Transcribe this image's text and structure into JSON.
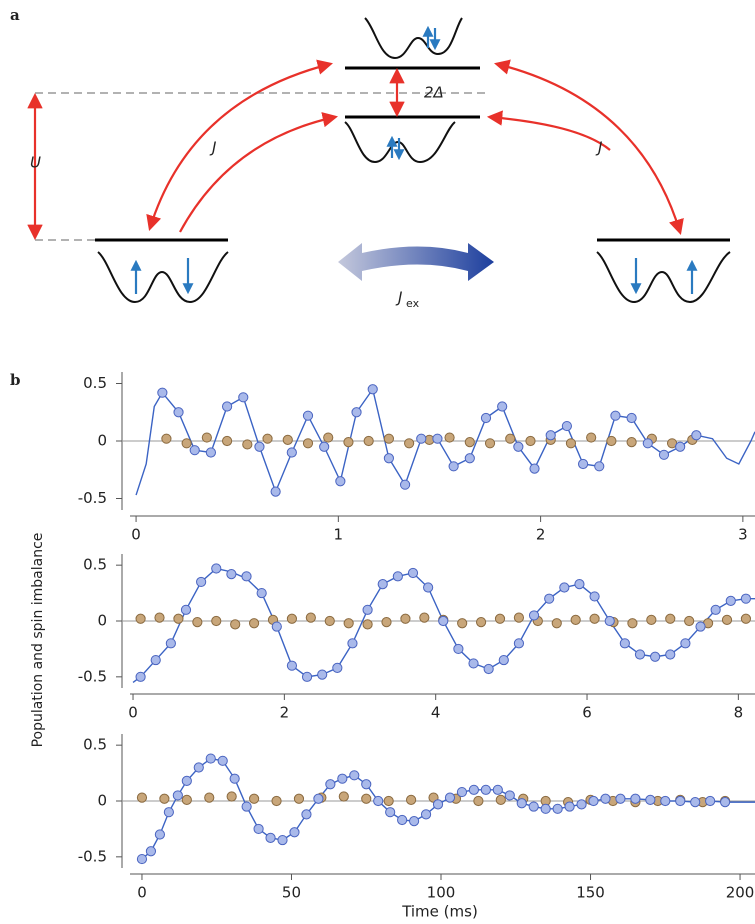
{
  "diagram": {
    "panel_label": "a",
    "U": "U",
    "J_left": "J",
    "J_right": "J",
    "delta": "2Δ",
    "J_ex": {
      "symbol": "J",
      "subscript": "ex"
    }
  },
  "figure_b": {
    "panel_label": "b",
    "ylabel": "Population and spin imbalance"
  },
  "chart_data": [
    {
      "type": "scatter",
      "xlim": [
        -0.03,
        3.06
      ],
      "ylim": [
        -0.6,
        0.6
      ],
      "xticks": [
        0,
        1,
        2,
        3
      ],
      "yticks": [
        -0.5,
        0,
        0.5
      ],
      "zero_line": true,
      "series": [
        {
          "style": "line",
          "color": "#3b63c4",
          "x": [
            0,
            0.05,
            0.09,
            0.13,
            0.21,
            0.29,
            0.37,
            0.45,
            0.53,
            0.61,
            0.69,
            0.77,
            0.85,
            0.93,
            1.01,
            1.09,
            1.17,
            1.25,
            1.33,
            1.41,
            1.49,
            1.57,
            1.65,
            1.73,
            1.81,
            1.89,
            1.97,
            2.05,
            2.13,
            2.21,
            2.29,
            2.37,
            2.45,
            2.53,
            2.61,
            2.69,
            2.77,
            2.85,
            2.92,
            2.98,
            3.04,
            3.06
          ],
          "values": [
            -0.47,
            -0.2,
            0.3,
            0.42,
            0.25,
            -0.08,
            -0.1,
            0.3,
            0.38,
            -0.05,
            -0.44,
            -0.1,
            0.22,
            -0.05,
            -0.35,
            0.25,
            0.45,
            -0.15,
            -0.38,
            0.02,
            0.02,
            -0.22,
            -0.15,
            0.2,
            0.3,
            -0.05,
            -0.24,
            0.05,
            0.13,
            -0.2,
            -0.22,
            0.22,
            0.2,
            -0.02,
            -0.12,
            -0.05,
            0.05,
            0.02,
            -0.15,
            -0.2,
            0.0,
            0.08
          ]
        },
        {
          "style": "points",
          "color": "#c8a67a",
          "stroke": "#8a6a40",
          "x": [
            0.15,
            0.25,
            0.35,
            0.45,
            0.55,
            0.65,
            0.75,
            0.85,
            0.95,
            1.05,
            1.15,
            1.25,
            1.35,
            1.45,
            1.55,
            1.65,
            1.75,
            1.85,
            1.95,
            2.05,
            2.15,
            2.25,
            2.35,
            2.45,
            2.55,
            2.65,
            2.75
          ],
          "values": [
            0.02,
            -0.02,
            0.03,
            0.0,
            -0.03,
            0.02,
            0.01,
            -0.02,
            0.03,
            -0.01,
            0.0,
            0.02,
            -0.02,
            0.01,
            0.03,
            -0.01,
            -0.02,
            0.02,
            0.0,
            0.01,
            -0.02,
            0.03,
            0.0,
            -0.01,
            0.02,
            -0.02,
            0.01
          ]
        },
        {
          "style": "points",
          "color": "#a9b9ea",
          "stroke": "#4a64c0",
          "x": [
            0.13,
            0.21,
            0.29,
            0.37,
            0.45,
            0.53,
            0.61,
            0.69,
            0.77,
            0.85,
            0.93,
            1.01,
            1.09,
            1.17,
            1.25,
            1.33,
            1.41,
            1.49,
            1.57,
            1.65,
            1.73,
            1.81,
            1.89,
            1.97,
            2.05,
            2.13,
            2.21,
            2.29,
            2.37,
            2.45,
            2.53,
            2.61,
            2.69,
            2.77
          ],
          "values": [
            0.42,
            0.25,
            -0.08,
            -0.1,
            0.3,
            0.38,
            -0.05,
            -0.44,
            -0.1,
            0.22,
            -0.05,
            -0.35,
            0.25,
            0.45,
            -0.15,
            -0.38,
            0.02,
            0.02,
            -0.22,
            -0.15,
            0.2,
            0.3,
            -0.05,
            -0.24,
            0.05,
            0.13,
            -0.2,
            -0.22,
            0.22,
            0.2,
            -0.02,
            -0.12,
            -0.05,
            0.05
          ]
        }
      ]
    },
    {
      "type": "scatter",
      "xlim": [
        -0.04,
        8.22
      ],
      "ylim": [
        -0.6,
        0.6
      ],
      "xticks": [
        0,
        2,
        4,
        6,
        8
      ],
      "yticks": [
        -0.5,
        0,
        0.5
      ],
      "zero_line": true,
      "series": [
        {
          "style": "line",
          "color": "#3b63c4",
          "x": [
            0,
            0.1,
            0.3,
            0.5,
            0.7,
            0.9,
            1.1,
            1.3,
            1.5,
            1.7,
            1.9,
            2.1,
            2.3,
            2.5,
            2.7,
            2.9,
            3.1,
            3.3,
            3.5,
            3.7,
            3.9,
            4.1,
            4.3,
            4.5,
            4.7,
            4.9,
            5.1,
            5.3,
            5.5,
            5.7,
            5.9,
            6.1,
            6.3,
            6.5,
            6.7,
            6.9,
            7.1,
            7.3,
            7.5,
            7.7,
            7.9,
            8.1,
            8.22
          ],
          "values": [
            -0.55,
            -0.5,
            -0.35,
            -0.2,
            0.1,
            0.35,
            0.47,
            0.44,
            0.38,
            0.25,
            -0.05,
            -0.4,
            -0.5,
            -0.48,
            -0.42,
            -0.2,
            0.1,
            0.33,
            0.4,
            0.43,
            0.3,
            0.0,
            -0.25,
            -0.38,
            -0.43,
            -0.35,
            -0.2,
            0.05,
            0.2,
            0.3,
            0.33,
            0.22,
            0.0,
            -0.2,
            -0.3,
            -0.32,
            -0.3,
            -0.2,
            -0.05,
            0.1,
            0.18,
            0.2,
            0.2
          ]
        },
        {
          "style": "points",
          "color": "#c8a67a",
          "stroke": "#8a6a40",
          "x": [
            0.1,
            0.35,
            0.6,
            0.85,
            1.1,
            1.35,
            1.6,
            1.85,
            2.1,
            2.35,
            2.6,
            2.85,
            3.1,
            3.35,
            3.6,
            3.85,
            4.1,
            4.35,
            4.6,
            4.85,
            5.1,
            5.35,
            5.6,
            5.85,
            6.1,
            6.35,
            6.6,
            6.85,
            7.1,
            7.35,
            7.6,
            7.85,
            8.1
          ],
          "values": [
            0.02,
            0.03,
            0.02,
            -0.01,
            0.0,
            -0.03,
            -0.02,
            0.01,
            0.02,
            0.03,
            0.0,
            -0.02,
            -0.03,
            -0.01,
            0.02,
            0.03,
            0.01,
            -0.02,
            -0.01,
            0.02,
            0.03,
            0.0,
            -0.02,
            0.01,
            0.02,
            -0.01,
            -0.02,
            0.01,
            0.02,
            0.0,
            -0.02,
            0.01,
            0.02
          ]
        },
        {
          "style": "points",
          "color": "#a9b9ea",
          "stroke": "#4a64c0",
          "x": [
            0.1,
            0.3,
            0.5,
            0.7,
            0.9,
            1.1,
            1.3,
            1.5,
            1.7,
            1.9,
            2.1,
            2.3,
            2.5,
            2.7,
            2.9,
            3.1,
            3.3,
            3.5,
            3.7,
            3.9,
            4.1,
            4.3,
            4.5,
            4.7,
            4.9,
            5.1,
            5.3,
            5.5,
            5.7,
            5.9,
            6.1,
            6.3,
            6.5,
            6.7,
            6.9,
            7.1,
            7.3,
            7.5,
            7.7,
            7.9,
            8.1
          ],
          "values": [
            -0.5,
            -0.35,
            -0.2,
            0.1,
            0.35,
            0.47,
            0.42,
            0.4,
            0.25,
            -0.05,
            -0.4,
            -0.5,
            -0.48,
            -0.42,
            -0.2,
            0.1,
            0.33,
            0.4,
            0.43,
            0.3,
            0.0,
            -0.25,
            -0.38,
            -0.43,
            -0.35,
            -0.2,
            0.05,
            0.2,
            0.3,
            0.33,
            0.22,
            0.0,
            -0.2,
            -0.3,
            -0.32,
            -0.3,
            -0.2,
            -0.05,
            0.1,
            0.18,
            0.2
          ]
        }
      ]
    },
    {
      "type": "scatter",
      "xlabel": "Time (ms)",
      "xlim": [
        -4,
        205
      ],
      "ylim": [
        -0.6,
        0.6
      ],
      "xticks": [
        0,
        50,
        100,
        150,
        200
      ],
      "yticks": [
        -0.5,
        0,
        0.5
      ],
      "zero_line": true,
      "series": [
        {
          "style": "line",
          "color": "#3b63c4",
          "x": [
            0,
            3,
            6,
            9,
            12,
            15,
            19,
            23,
            27,
            31,
            35,
            39,
            43,
            47,
            51,
            55,
            59,
            63,
            67,
            71,
            75,
            79,
            83,
            87,
            91,
            95,
            99,
            103,
            107,
            111,
            115,
            119,
            123,
            127,
            131,
            135,
            139,
            143,
            147,
            151,
            155,
            160,
            165,
            170,
            175,
            180,
            185,
            190,
            195,
            205
          ],
          "values": [
            -0.52,
            -0.45,
            -0.3,
            -0.1,
            0.05,
            0.18,
            0.3,
            0.38,
            0.36,
            0.2,
            -0.05,
            -0.25,
            -0.33,
            -0.35,
            -0.28,
            -0.12,
            0.02,
            0.15,
            0.2,
            0.23,
            0.15,
            0.0,
            -0.1,
            -0.17,
            -0.18,
            -0.12,
            -0.03,
            0.03,
            0.08,
            0.1,
            0.1,
            0.1,
            0.05,
            -0.02,
            -0.05,
            -0.07,
            -0.07,
            -0.05,
            -0.03,
            0.0,
            0.02,
            0.02,
            0.02,
            0.01,
            0.0,
            0.0,
            -0.01,
            0.0,
            -0.01,
            -0.01
          ]
        },
        {
          "style": "points",
          "color": "#c8a67a",
          "stroke": "#8a6a40",
          "x": [
            0,
            7.5,
            15,
            22.5,
            30,
            37.5,
            45,
            52.5,
            60,
            67.5,
            75,
            82.5,
            90,
            97.5,
            105,
            112.5,
            120,
            127.5,
            135,
            142.5,
            150,
            157.5,
            165,
            172.5,
            180,
            187.5,
            195
          ],
          "values": [
            0.03,
            0.02,
            0.01,
            0.03,
            0.04,
            0.02,
            0.0,
            0.02,
            0.03,
            0.04,
            0.02,
            0.0,
            0.01,
            0.03,
            0.02,
            0.0,
            0.01,
            0.02,
            0.0,
            -0.01,
            0.01,
            0.0,
            -0.01,
            0.0,
            0.01,
            -0.01,
            0.0
          ]
        },
        {
          "style": "points",
          "color": "#a9b9ea",
          "stroke": "#4a64c0",
          "x": [
            0,
            3,
            6,
            9,
            12,
            15,
            19,
            23,
            27,
            31,
            35,
            39,
            43,
            47,
            51,
            55,
            59,
            63,
            67,
            71,
            75,
            79,
            83,
            87,
            91,
            95,
            99,
            103,
            107,
            111,
            115,
            119,
            123,
            127,
            131,
            135,
            139,
            143,
            147,
            151,
            155,
            160,
            165,
            170,
            175,
            180,
            185,
            190,
            195
          ],
          "values": [
            -0.52,
            -0.45,
            -0.3,
            -0.1,
            0.05,
            0.18,
            0.3,
            0.38,
            0.36,
            0.2,
            -0.05,
            -0.25,
            -0.33,
            -0.35,
            -0.28,
            -0.12,
            0.02,
            0.15,
            0.2,
            0.23,
            0.15,
            0.0,
            -0.1,
            -0.17,
            -0.18,
            -0.12,
            -0.03,
            0.03,
            0.08,
            0.1,
            0.1,
            0.1,
            0.05,
            -0.02,
            -0.05,
            -0.07,
            -0.07,
            -0.05,
            -0.03,
            0.0,
            0.02,
            0.02,
            0.02,
            0.01,
            0.0,
            0.0,
            -0.01,
            0.0,
            -0.01
          ]
        }
      ]
    }
  ]
}
